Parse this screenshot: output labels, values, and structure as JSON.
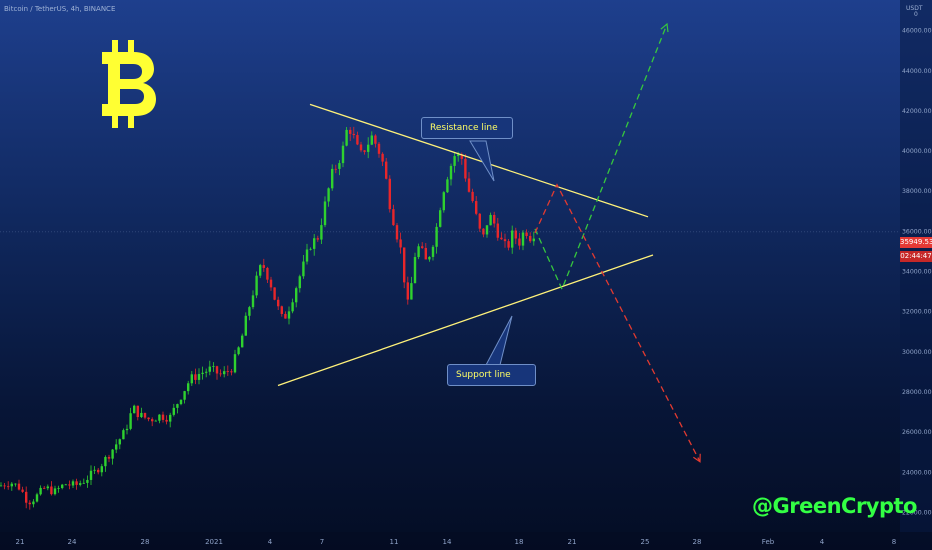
{
  "header": {
    "title": "Bitcoin / TetherUS, 4h, BINANCE",
    "currency": "USDT",
    "menu_glyph": "4",
    "settings_glyph": "0"
  },
  "logo": {
    "symbol": "Bitcoin-logo",
    "color": "#ffff33"
  },
  "annotations": {
    "resistance": "Resistance line",
    "support": "Support line"
  },
  "brand": "@GreenCrypto",
  "price_tag": {
    "value": "35949.53",
    "countdown": "02:44:47"
  },
  "chart_data": {
    "type": "candlestick",
    "symbol": "BTCUSDT",
    "interval": "4h",
    "exchange": "BINANCE",
    "ylim": [
      21000,
      47500
    ],
    "xlim": [
      0,
      900
    ],
    "y_ticks": [
      "22000.00",
      "24000.00",
      "26000.00",
      "28000.00",
      "30000.00",
      "32000.00",
      "34000.00",
      "36000.00",
      "38000.00",
      "40000.00",
      "42000.00",
      "44000.00",
      "46000.00"
    ],
    "x_ticks": [
      {
        "label": "21",
        "i": 20
      },
      {
        "label": "24",
        "i": 72
      },
      {
        "label": "28",
        "i": 145
      },
      {
        "label": "2021",
        "i": 214
      },
      {
        "label": "4",
        "i": 270
      },
      {
        "label": "7",
        "i": 322
      },
      {
        "label": "11",
        "i": 394
      },
      {
        "label": "14",
        "i": 447
      },
      {
        "label": "18",
        "i": 519
      },
      {
        "label": "21",
        "i": 572
      },
      {
        "label": "25",
        "i": 645
      },
      {
        "label": "28",
        "i": 697
      },
      {
        "label": "Feb",
        "i": 768
      },
      {
        "label": "4",
        "i": 822
      },
      {
        "label": "8",
        "i": 894
      }
    ],
    "candle_step": 3.6,
    "close_path": [
      [
        0,
        23300
      ],
      [
        10,
        23500
      ],
      [
        20,
        23200
      ],
      [
        28,
        22500
      ],
      [
        35,
        22700
      ],
      [
        45,
        23200
      ],
      [
        55,
        23000
      ],
      [
        65,
        23400
      ],
      [
        75,
        23300
      ],
      [
        85,
        23600
      ],
      [
        95,
        24000
      ],
      [
        105,
        24600
      ],
      [
        115,
        25300
      ],
      [
        125,
        26000
      ],
      [
        133,
        27200
      ],
      [
        140,
        26800
      ],
      [
        150,
        26600
      ],
      [
        160,
        26800
      ],
      [
        170,
        26700
      ],
      [
        180,
        27700
      ],
      [
        190,
        28600
      ],
      [
        200,
        28900
      ],
      [
        210,
        29100
      ],
      [
        222,
        28800
      ],
      [
        232,
        29200
      ],
      [
        240,
        30300
      ],
      [
        248,
        32000
      ],
      [
        255,
        33300
      ],
      [
        262,
        34400
      ],
      [
        270,
        33500
      ],
      [
        276,
        32400
      ],
      [
        283,
        31500
      ],
      [
        290,
        32300
      ],
      [
        296,
        33200
      ],
      [
        303,
        34200
      ],
      [
        310,
        35300
      ],
      [
        318,
        35700
      ],
      [
        325,
        37300
      ],
      [
        332,
        38800
      ],
      [
        338,
        39400
      ],
      [
        343,
        40100
      ],
      [
        348,
        41300
      ],
      [
        354,
        40600
      ],
      [
        360,
        39700
      ],
      [
        366,
        40200
      ],
      [
        372,
        40700
      ],
      [
        378,
        40100
      ],
      [
        384,
        39200
      ],
      [
        390,
        37300
      ],
      [
        396,
        36000
      ],
      [
        402,
        34800
      ],
      [
        407,
        32100
      ],
      [
        411,
        33200
      ],
      [
        415,
        34800
      ],
      [
        420,
        35300
      ],
      [
        425,
        34400
      ],
      [
        430,
        34900
      ],
      [
        436,
        36000
      ],
      [
        442,
        37800
      ],
      [
        448,
        38900
      ],
      [
        455,
        39800
      ],
      [
        462,
        39600
      ],
      [
        468,
        38100
      ],
      [
        474,
        37300
      ],
      [
        478,
        36200
      ],
      [
        483,
        35600
      ],
      [
        489,
        36800
      ],
      [
        495,
        36300
      ],
      [
        501,
        35500
      ],
      [
        507,
        35100
      ],
      [
        513,
        35900
      ],
      [
        519,
        35400
      ],
      [
        525,
        36100
      ],
      [
        530,
        35700
      ],
      [
        535,
        35950
      ]
    ],
    "trendlines": [
      {
        "name": "Resistance line",
        "points": [
          [
            310,
            42300
          ],
          [
            648,
            36700
          ]
        ],
        "color": "#fff27a"
      },
      {
        "name": "Support line",
        "points": [
          [
            278,
            28300
          ],
          [
            653,
            34800
          ]
        ],
        "color": "#fff27a"
      }
    ],
    "projections": [
      {
        "scenario": "bullish",
        "points": [
          [
            535,
            36100
          ],
          [
            562,
            33100
          ],
          [
            667,
            46300
          ]
        ],
        "color": "#36c73d"
      },
      {
        "scenario": "bearish",
        "points": [
          [
            535,
            35900
          ],
          [
            557,
            38300
          ],
          [
            700,
            24500
          ]
        ],
        "color": "#e23a30"
      }
    ],
    "last_price": 35949.53,
    "grid": false
  }
}
